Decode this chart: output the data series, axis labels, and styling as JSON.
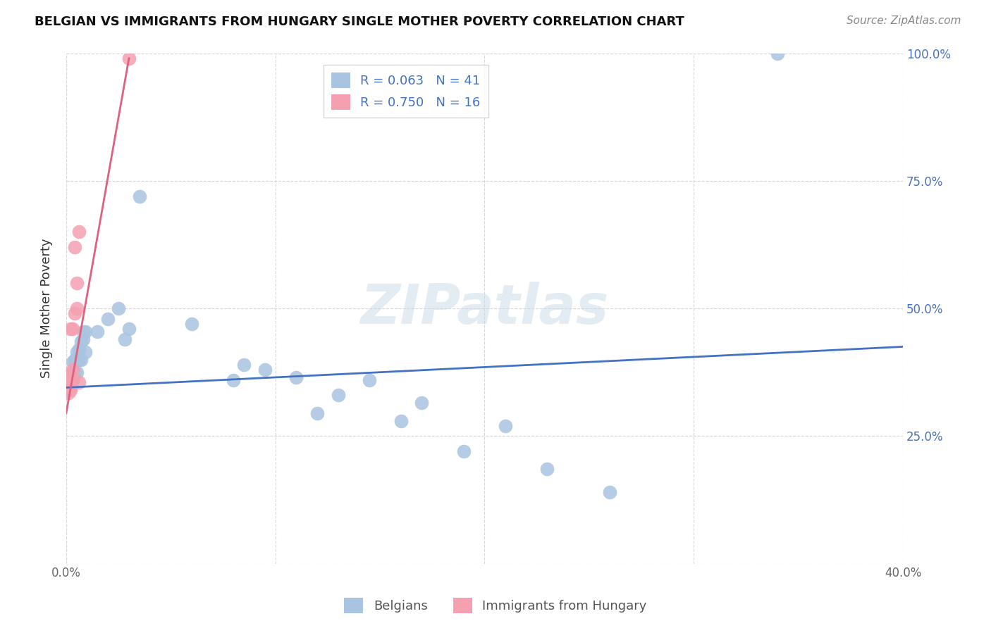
{
  "title": "BELGIAN VS IMMIGRANTS FROM HUNGARY SINGLE MOTHER POVERTY CORRELATION CHART",
  "source": "Source: ZipAtlas.com",
  "ylabel": "Single Mother Poverty",
  "watermark": "ZIPatlas",
  "xlim": [
    0.0,
    0.4
  ],
  "ylim": [
    0.0,
    1.0
  ],
  "belgians_R": 0.063,
  "belgians_N": 41,
  "hungary_R": 0.75,
  "hungary_N": 16,
  "belgians_color": "#a8c4e0",
  "hungary_color": "#f4a0b0",
  "belgians_line_color": "#4472c4",
  "hungary_line_color": "#e06080",
  "legend_label_belgians": "Belgians",
  "legend_label_hungary": "Immigrants from Hungary",
  "belgians_x": [
    0.001,
    0.001,
    0.002,
    0.002,
    0.003,
    0.003,
    0.003,
    0.004,
    0.004,
    0.005,
    0.005,
    0.005,
    0.006,
    0.006,
    0.007,
    0.007,
    0.008,
    0.008,
    0.009,
    0.009,
    0.015,
    0.02,
    0.025,
    0.028,
    0.03,
    0.035,
    0.06,
    0.08,
    0.085,
    0.095,
    0.11,
    0.12,
    0.13,
    0.145,
    0.16,
    0.17,
    0.19,
    0.21,
    0.23,
    0.26,
    0.34
  ],
  "belgians_y": [
    0.355,
    0.365,
    0.345,
    0.365,
    0.36,
    0.375,
    0.395,
    0.375,
    0.4,
    0.375,
    0.4,
    0.415,
    0.4,
    0.42,
    0.4,
    0.435,
    0.44,
    0.455,
    0.415,
    0.455,
    0.455,
    0.48,
    0.5,
    0.44,
    0.46,
    0.72,
    0.47,
    0.36,
    0.39,
    0.38,
    0.365,
    0.295,
    0.33,
    0.36,
    0.28,
    0.315,
    0.22,
    0.27,
    0.185,
    0.14,
    1.0
  ],
  "hungary_x": [
    0.001,
    0.001,
    0.001,
    0.002,
    0.002,
    0.002,
    0.003,
    0.003,
    0.003,
    0.004,
    0.004,
    0.005,
    0.005,
    0.006,
    0.006,
    0.03
  ],
  "hungary_y": [
    0.335,
    0.345,
    0.355,
    0.34,
    0.37,
    0.46,
    0.36,
    0.38,
    0.46,
    0.49,
    0.62,
    0.5,
    0.55,
    0.65,
    0.355,
    0.99
  ],
  "blue_line_x": [
    0.0,
    0.4
  ],
  "blue_line_y": [
    0.345,
    0.425
  ],
  "pink_line_x": [
    0.0,
    0.03
  ],
  "pink_line_y": [
    0.295,
    0.99
  ]
}
